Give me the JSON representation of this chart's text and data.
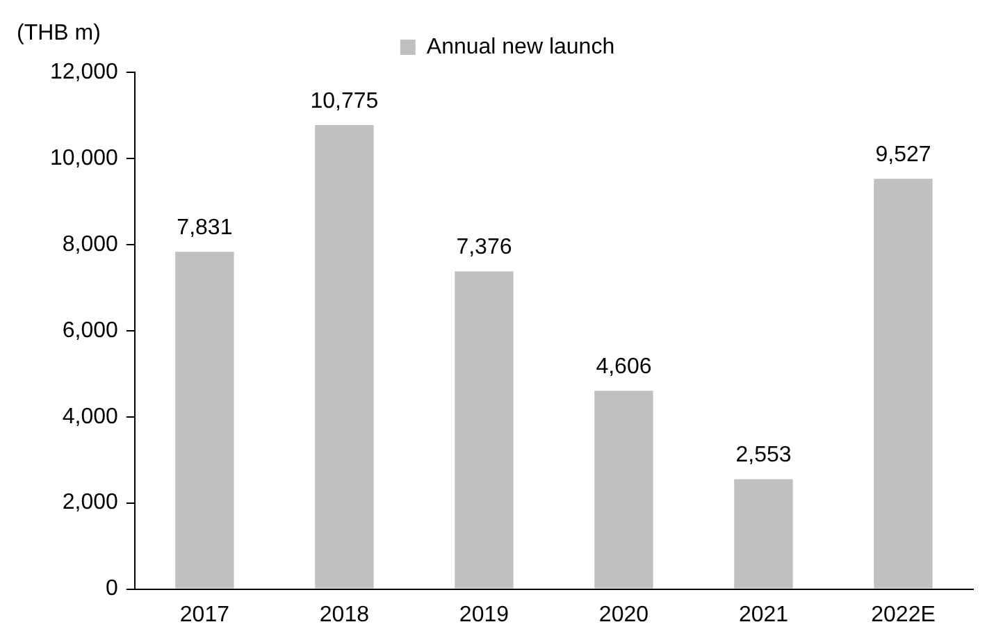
{
  "chart_data": {
    "type": "bar",
    "ylabel": "(THB m)",
    "categories": [
      "2017",
      "2018",
      "2019",
      "2020",
      "2021",
      "2022E"
    ],
    "series": [
      {
        "name": "Annual new launch",
        "color": "#c0c0c0",
        "values": [
          7831,
          10775,
          7376,
          4606,
          2553,
          9527
        ],
        "value_labels": [
          "7,831",
          "10,775",
          "7,376",
          "4,606",
          "2,553",
          "9,527"
        ]
      }
    ],
    "ylim": [
      0,
      12000
    ],
    "yticks": [
      {
        "value": 0,
        "label": "0"
      },
      {
        "value": 2000,
        "label": "2,000"
      },
      {
        "value": 4000,
        "label": "4,000"
      },
      {
        "value": 6000,
        "label": "6,000"
      },
      {
        "value": 8000,
        "label": "8,000"
      },
      {
        "value": 10000,
        "label": "10,000"
      },
      {
        "value": 12000,
        "label": "12,000"
      }
    ],
    "grid": false,
    "legend": "top"
  }
}
